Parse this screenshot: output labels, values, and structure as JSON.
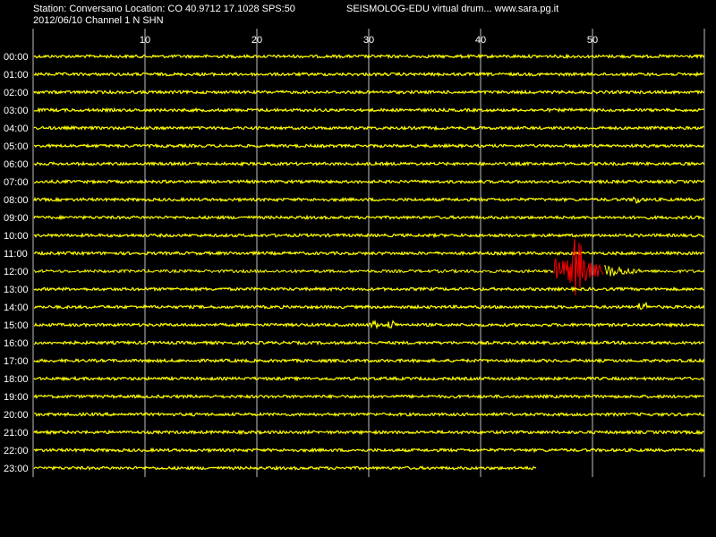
{
  "header": {
    "station_line": "Station: Conversano Location: CO 40.9712 17.1028 SPS:50",
    "date_line": "2012/06/10  Channel 1 N SHN",
    "right_line": "SEISMOLOG-EDU virtual drum... www.sara.pg.it"
  },
  "colors": {
    "background": "#000000",
    "trace": "#ffff00",
    "event_trace": "#ff0000",
    "grid": "#c0c0c0",
    "text": "#ffffff"
  },
  "chart_data": {
    "type": "line",
    "title": "SEISMOLOG-EDU virtual drum",
    "x_ticks": [
      10,
      20,
      30,
      40,
      50
    ],
    "xlim": [
      0,
      60
    ],
    "rows": [
      "00:00",
      "01:00",
      "02:00",
      "03:00",
      "04:00",
      "05:00",
      "06:00",
      "07:00",
      "08:00",
      "09:00",
      "10:00",
      "11:00",
      "12:00",
      "13:00",
      "14:00",
      "15:00",
      "16:00",
      "17:00",
      "18:00",
      "19:00",
      "20:00",
      "21:00",
      "22:00",
      "23:00"
    ],
    "last_row_end_minute": 45,
    "event": {
      "row": "12:00",
      "start_minute": 46.5,
      "strong_end_minute": 51,
      "coda_end_minute": 54.5
    },
    "minor_bursts": [
      {
        "row": "14:00",
        "minute": 54.5
      },
      {
        "row": "15:00",
        "minute": 30.5
      },
      {
        "row": "15:00",
        "minute": 32
      },
      {
        "row": "08:00",
        "minute": 54
      }
    ]
  }
}
